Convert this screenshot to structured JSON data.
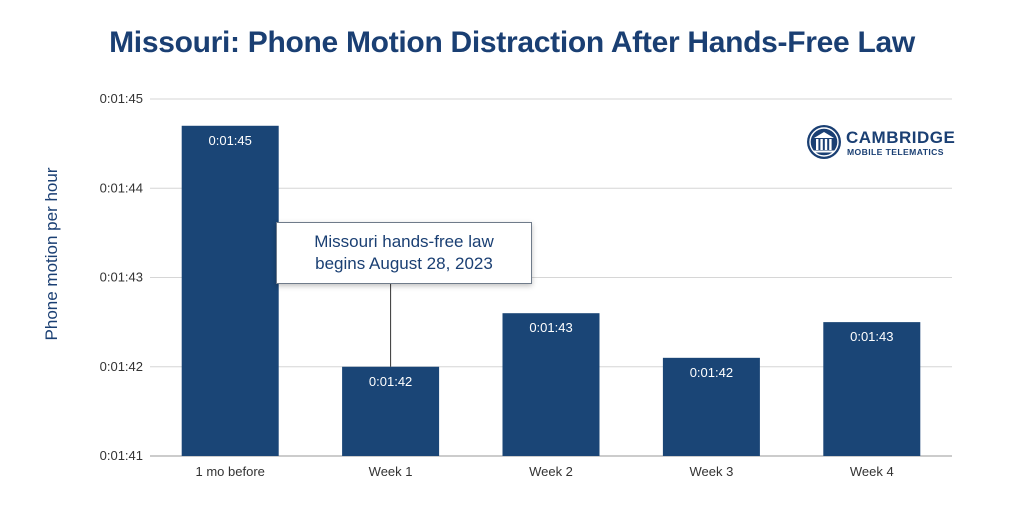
{
  "chart_data": {
    "type": "bar",
    "title": "Missouri: Phone Motion Distraction After Hands-Free Law",
    "xlabel": "",
    "ylabel": "Phone motion per hour",
    "categories": [
      "1 mo before",
      "Week 1",
      "Week 2",
      "Week 3",
      "Week 4"
    ],
    "values": [
      "0:01:44.7",
      "0:01:42.0",
      "0:01:42.6",
      "0:01:42.1",
      "0:01:42.5"
    ],
    "value_labels": [
      "0:01:45",
      "0:01:42",
      "0:01:43",
      "0:01:42",
      "0:01:43"
    ],
    "yticks": [
      "0:01:41",
      "0:01:42",
      "0:01:43",
      "0:01:44",
      "0:01:45"
    ],
    "ylim": [
      "0:01:41",
      "0:01:45"
    ],
    "grid": true,
    "bar_color": "#1a4576",
    "annotation": {
      "lines": [
        "Missouri hands-free law",
        "begins August 28, 2023"
      ],
      "category": "Week 1"
    }
  },
  "logo": {
    "brand": "CAMBRIDGE",
    "sub": "MOBILE TELEMATICS",
    "icon": "columned-building-icon"
  }
}
